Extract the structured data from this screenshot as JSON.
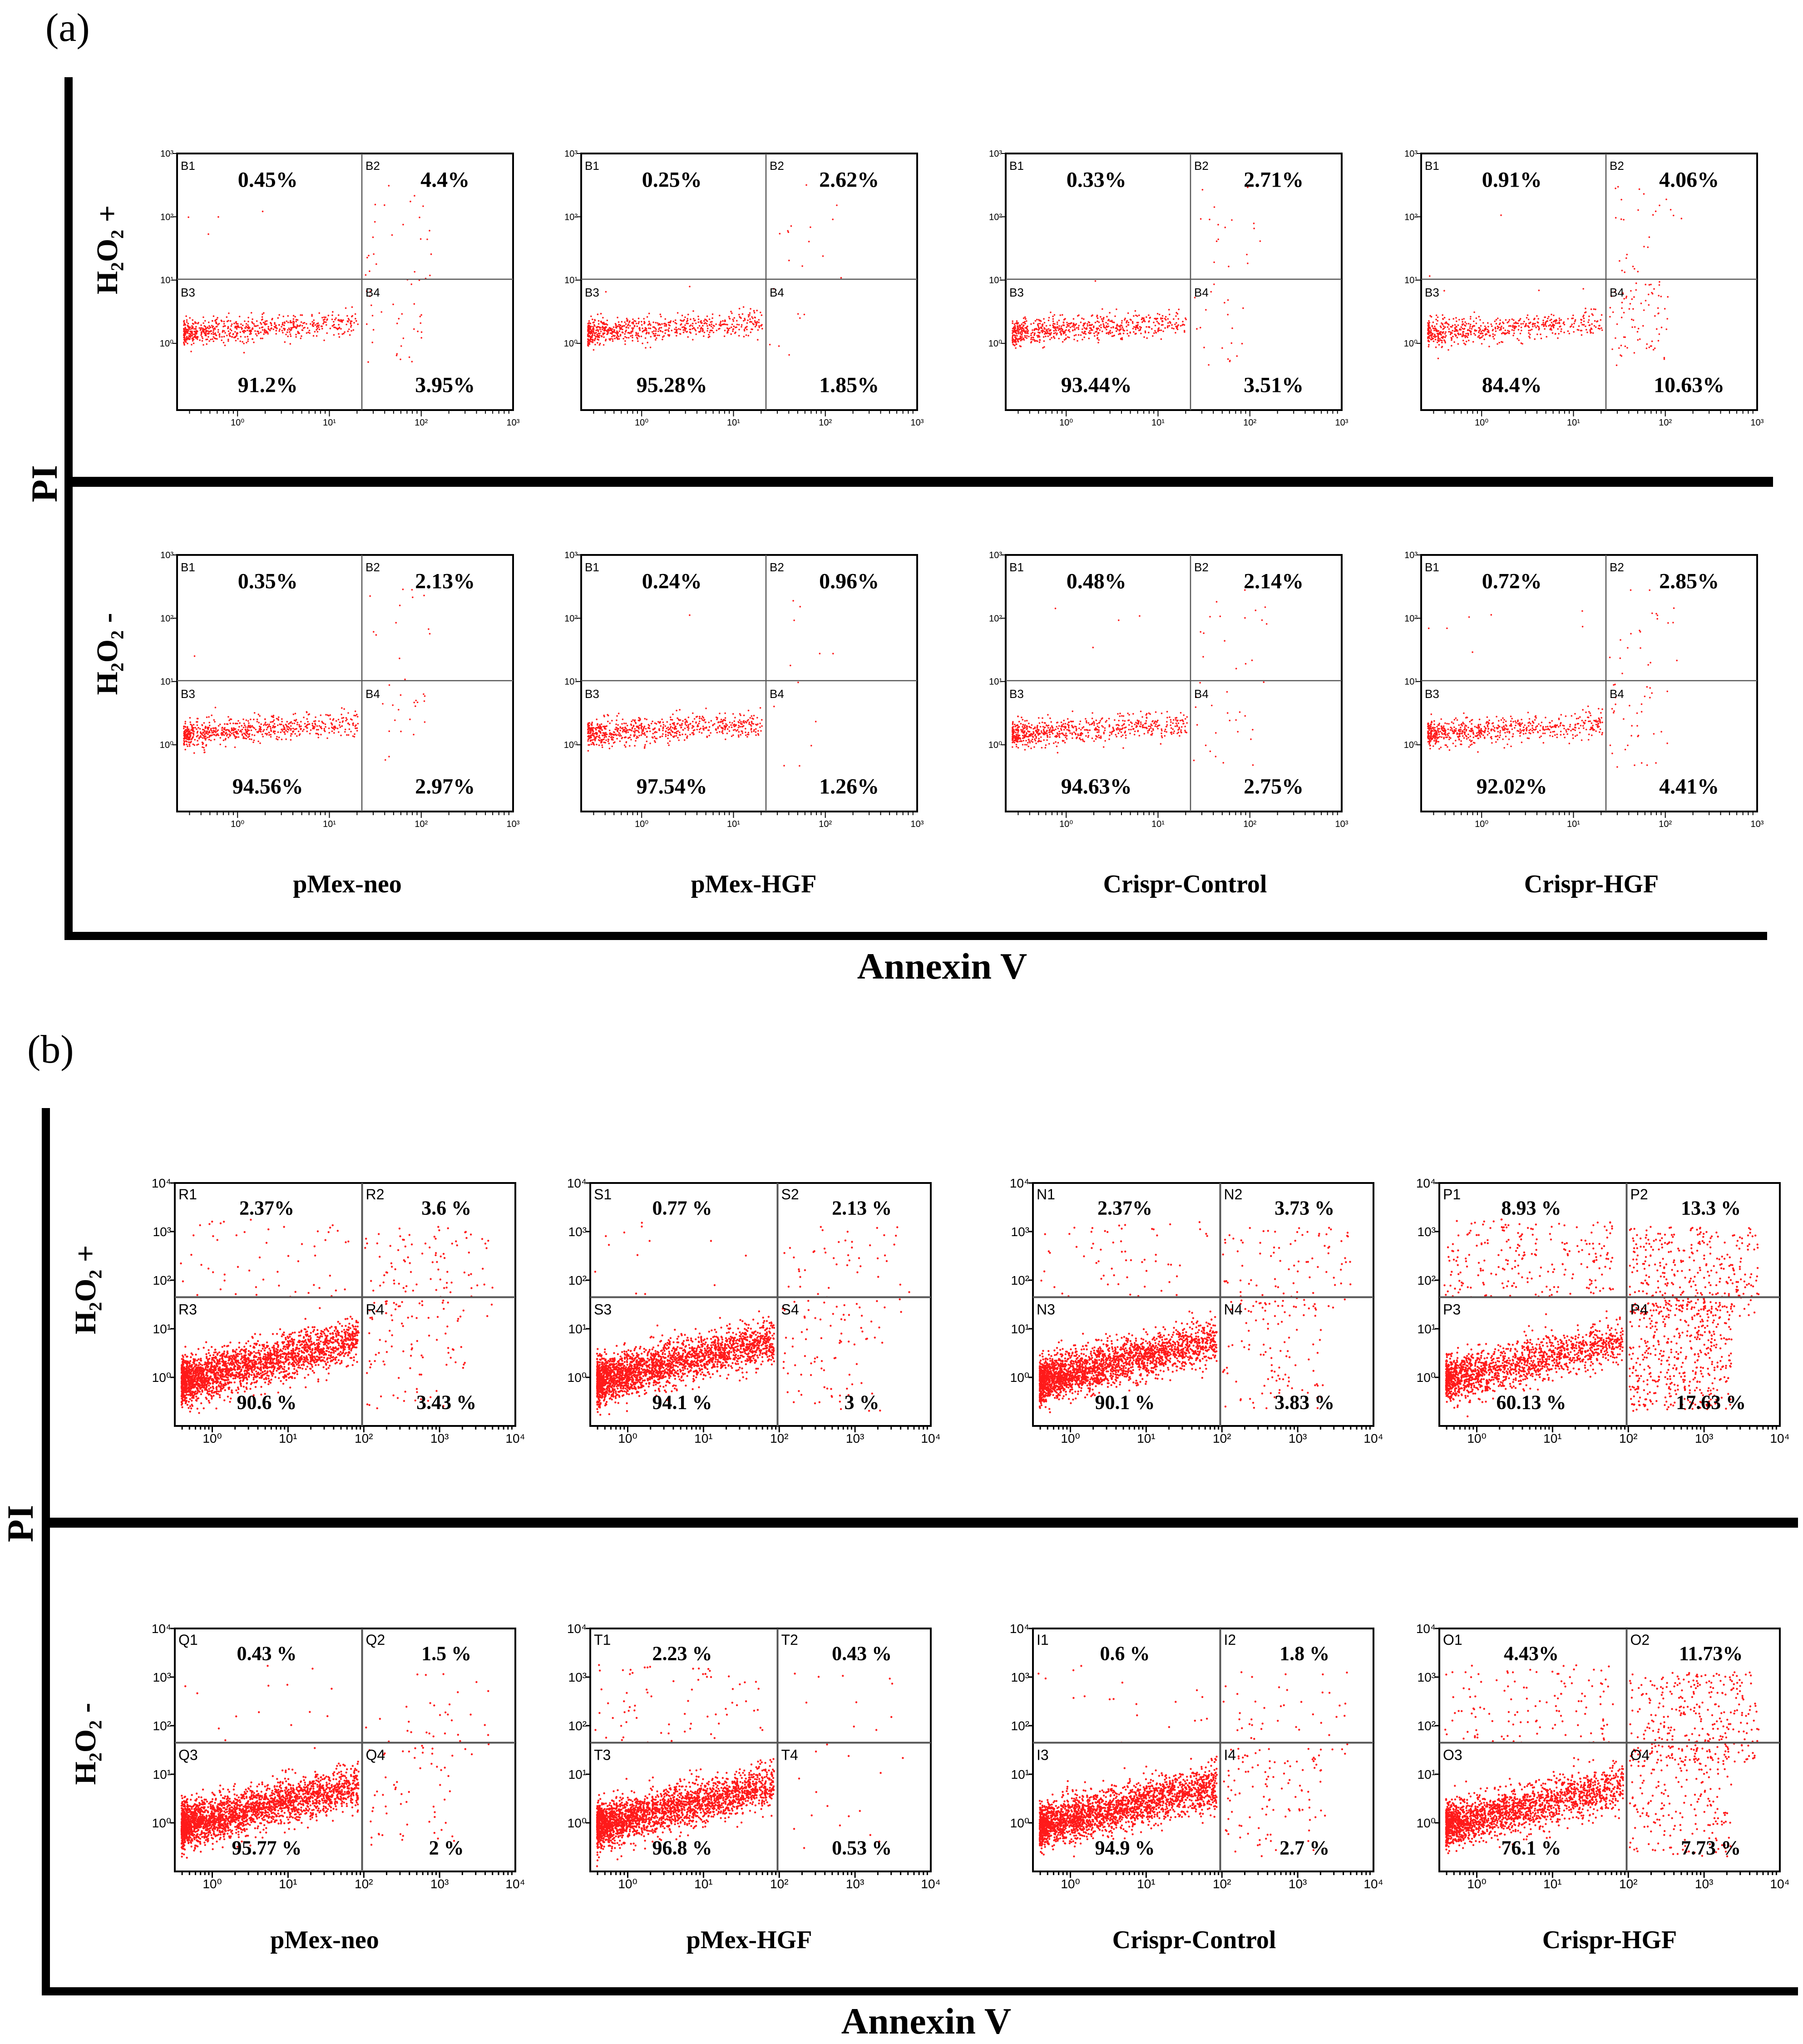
{
  "panels": [
    {
      "label": "(a)",
      "y_axis_label": "PI",
      "x_axis_label": "Annexin V",
      "row_labels": [
        "H₂O₂ +",
        "H₂O₂ -"
      ],
      "column_labels": [
        "pMex-neo",
        "pMex-HGF",
        "Crispr-Control",
        "Crispr-HGF"
      ]
    },
    {
      "label": "(b)",
      "y_axis_label": "PI",
      "x_axis_label": "Annexin V",
      "row_labels": [
        "H₂O₂ +",
        "H₂O₂ -"
      ],
      "column_labels": [
        "pMex-neo",
        "pMex-HGF",
        "Crispr-Control",
        "Crispr-HGF"
      ]
    }
  ],
  "colors": {
    "dots": "#ff1a1a",
    "axes": "#000000",
    "gate_lines": "#555555"
  },
  "chart_data": [
    {
      "type": "scatter",
      "panel": "(a)",
      "row": "H₂O₂ +",
      "column": "pMex-neo",
      "xscale": "log",
      "yscale": "log",
      "x_ticks": [
        "10⁰",
        "10¹",
        "10²",
        "10³"
      ],
      "y_ticks": [
        "10⁰",
        "10¹",
        "10²",
        "10³"
      ],
      "gate_names": [
        "B1",
        "B2",
        "B3",
        "B4"
      ],
      "quadrants": {
        "UL": "0.45%",
        "UR": "4.4%",
        "LL": "91.2%",
        "LR": "3.95%"
      }
    },
    {
      "type": "scatter",
      "panel": "(a)",
      "row": "H₂O₂ +",
      "column": "pMex-HGF",
      "xscale": "log",
      "yscale": "log",
      "x_ticks": [
        "10⁰",
        "10¹",
        "10²",
        "10³"
      ],
      "y_ticks": [
        "10⁰",
        "10¹",
        "10²",
        "10³"
      ],
      "gate_names": [
        "B1",
        "B2",
        "B3",
        "B4"
      ],
      "quadrants": {
        "UL": "0.25%",
        "UR": "2.62%",
        "LL": "95.28%",
        "LR": "1.85%"
      }
    },
    {
      "type": "scatter",
      "panel": "(a)",
      "row": "H₂O₂ +",
      "column": "Crispr-Control",
      "xscale": "log",
      "yscale": "log",
      "x_ticks": [
        "10⁰",
        "10¹",
        "10²",
        "10³"
      ],
      "y_ticks": [
        "10⁰",
        "10¹",
        "10²",
        "10³"
      ],
      "gate_names": [
        "B1",
        "B2",
        "B3",
        "B4"
      ],
      "quadrants": {
        "UL": "0.33%",
        "UR": "2.71%",
        "LL": "93.44%",
        "LR": "3.51%"
      }
    },
    {
      "type": "scatter",
      "panel": "(a)",
      "row": "H₂O₂ +",
      "column": "Crispr-HGF",
      "xscale": "log",
      "yscale": "log",
      "x_ticks": [
        "10⁰",
        "10¹",
        "10²",
        "10³"
      ],
      "y_ticks": [
        "10⁰",
        "10¹",
        "10²",
        "10³"
      ],
      "gate_names": [
        "B1",
        "B2",
        "B3",
        "B4"
      ],
      "quadrants": {
        "UL": "0.91%",
        "UR": "4.06%",
        "LL": "84.4%",
        "LR": "10.63%"
      }
    },
    {
      "type": "scatter",
      "panel": "(a)",
      "row": "H₂O₂ -",
      "column": "pMex-neo",
      "xscale": "log",
      "yscale": "log",
      "x_ticks": [
        "10⁰",
        "10¹",
        "10²",
        "10³"
      ],
      "y_ticks": [
        "10⁰",
        "10¹",
        "10²",
        "10³"
      ],
      "gate_names": [
        "B1",
        "B2",
        "B3",
        "B4"
      ],
      "quadrants": {
        "UL": "0.35%",
        "UR": "2.13%",
        "LL": "94.56%",
        "LR": "2.97%"
      }
    },
    {
      "type": "scatter",
      "panel": "(a)",
      "row": "H₂O₂ -",
      "column": "pMex-HGF",
      "xscale": "log",
      "yscale": "log",
      "x_ticks": [
        "10⁰",
        "10¹",
        "10²",
        "10³"
      ],
      "y_ticks": [
        "10⁰",
        "10¹",
        "10²",
        "10³"
      ],
      "gate_names": [
        "B1",
        "B2",
        "B3",
        "B4"
      ],
      "quadrants": {
        "UL": "0.24%",
        "UR": "0.96%",
        "LL": "97.54%",
        "LR": "1.26%"
      }
    },
    {
      "type": "scatter",
      "panel": "(a)",
      "row": "H₂O₂ -",
      "column": "Crispr-Control",
      "xscale": "log",
      "yscale": "log",
      "x_ticks": [
        "10⁰",
        "10¹",
        "10²",
        "10³"
      ],
      "y_ticks": [
        "10⁰",
        "10¹",
        "10²",
        "10³"
      ],
      "gate_names": [
        "B1",
        "B2",
        "B3",
        "B4"
      ],
      "quadrants": {
        "UL": "0.48%",
        "UR": "2.14%",
        "LL": "94.63%",
        "LR": "2.75%"
      }
    },
    {
      "type": "scatter",
      "panel": "(a)",
      "row": "H₂O₂ -",
      "column": "Crispr-HGF",
      "xscale": "log",
      "yscale": "log",
      "x_ticks": [
        "10⁰",
        "10¹",
        "10²",
        "10³"
      ],
      "y_ticks": [
        "10⁰",
        "10¹",
        "10²",
        "10³"
      ],
      "gate_names": [
        "B1",
        "B2",
        "B3",
        "B4"
      ],
      "quadrants": {
        "UL": "0.72%",
        "UR": "2.85%",
        "LL": "92.02%",
        "LR": "4.41%"
      }
    },
    {
      "type": "scatter",
      "panel": "(b)",
      "row": "H₂O₂ +",
      "column": "pMex-neo",
      "xscale": "log",
      "yscale": "log",
      "x_ticks": [
        "10⁰",
        "10¹",
        "10²",
        "10³",
        "10⁴"
      ],
      "y_ticks": [
        "10⁰",
        "10¹",
        "10²",
        "10³",
        "10⁴"
      ],
      "gate_names": [
        "R1",
        "R2",
        "R3",
        "R4"
      ],
      "quadrants": {
        "UL": "2.37%",
        "UR": "3.6 %",
        "LL": "90.6 %",
        "LR": "3.43 %"
      }
    },
    {
      "type": "scatter",
      "panel": "(b)",
      "row": "H₂O₂ +",
      "column": "pMex-HGF",
      "xscale": "log",
      "yscale": "log",
      "x_ticks": [
        "10⁰",
        "10¹",
        "10²",
        "10³",
        "10⁴"
      ],
      "y_ticks": [
        "10⁰",
        "10¹",
        "10²",
        "10³",
        "10⁴"
      ],
      "gate_names": [
        "S1",
        "S2",
        "S3",
        "S4"
      ],
      "quadrants": {
        "UL": "0.77 %",
        "UR": "2.13 %",
        "LL": "94.1 %",
        "LR": "3 %"
      }
    },
    {
      "type": "scatter",
      "panel": "(b)",
      "row": "H₂O₂ +",
      "column": "Crispr-Control",
      "xscale": "log",
      "yscale": "log",
      "x_ticks": [
        "10⁰",
        "10¹",
        "10²",
        "10³",
        "10⁴"
      ],
      "y_ticks": [
        "10⁰",
        "10¹",
        "10²",
        "10³",
        "10⁴"
      ],
      "gate_names": [
        "N1",
        "N2",
        "N3",
        "N4"
      ],
      "quadrants": {
        "UL": "2.37%",
        "UR": "3.73 %",
        "LL": "90.1 %",
        "LR": "3.83 %"
      }
    },
    {
      "type": "scatter",
      "panel": "(b)",
      "row": "H₂O₂ +",
      "column": "Crispr-HGF",
      "xscale": "log",
      "yscale": "log",
      "x_ticks": [
        "10⁰",
        "10¹",
        "10²",
        "10³",
        "10⁴"
      ],
      "y_ticks": [
        "10⁰",
        "10¹",
        "10²",
        "10³",
        "10⁴"
      ],
      "gate_names": [
        "P1",
        "P2",
        "P3",
        "P4"
      ],
      "quadrants": {
        "UL": "8.93 %",
        "UR": "13.3 %",
        "LL": "60.13 %",
        "LR": "17.63 %"
      }
    },
    {
      "type": "scatter",
      "panel": "(b)",
      "row": "H₂O₂ -",
      "column": "pMex-neo",
      "xscale": "log",
      "yscale": "log",
      "x_ticks": [
        "10⁰",
        "10¹",
        "10²",
        "10³",
        "10⁴"
      ],
      "y_ticks": [
        "10⁰",
        "10¹",
        "10²",
        "10³",
        "10⁴"
      ],
      "gate_names": [
        "Q1",
        "Q2",
        "Q3",
        "Q4"
      ],
      "quadrants": {
        "UL": "0.43 %",
        "UR": "1.5 %",
        "LL": "95.77 %",
        "LR": "2 %"
      }
    },
    {
      "type": "scatter",
      "panel": "(b)",
      "row": "H₂O₂ -",
      "column": "pMex-HGF",
      "xscale": "log",
      "yscale": "log",
      "x_ticks": [
        "10⁰",
        "10¹",
        "10²",
        "10³",
        "10⁴"
      ],
      "y_ticks": [
        "10⁰",
        "10¹",
        "10²",
        "10³",
        "10⁴"
      ],
      "gate_names": [
        "T1",
        "T2",
        "T3",
        "T4"
      ],
      "quadrants": {
        "UL": "2.23 %",
        "UR": "0.43 %",
        "LL": "96.8 %",
        "LR": "0.53 %"
      }
    },
    {
      "type": "scatter",
      "panel": "(b)",
      "row": "H₂O₂ -",
      "column": "Crispr-Control",
      "xscale": "log",
      "yscale": "log",
      "x_ticks": [
        "10⁰",
        "10¹",
        "10²",
        "10³",
        "10⁴"
      ],
      "y_ticks": [
        "10⁰",
        "10¹",
        "10²",
        "10³",
        "10⁴"
      ],
      "gate_names": [
        "I1",
        "I2",
        "I3",
        "I4"
      ],
      "quadrants": {
        "UL": "0.6 %",
        "UR": "1.8 %",
        "LL": "94.9 %",
        "LR": "2.7 %"
      }
    },
    {
      "type": "scatter",
      "panel": "(b)",
      "row": "H₂O₂ -",
      "column": "Crispr-HGF",
      "xscale": "log",
      "yscale": "log",
      "x_ticks": [
        "10⁰",
        "10¹",
        "10²",
        "10³",
        "10⁴"
      ],
      "y_ticks": [
        "10⁰",
        "10¹",
        "10²",
        "10³",
        "10⁴"
      ],
      "gate_names": [
        "O1",
        "O2",
        "O3",
        "O4"
      ],
      "quadrants": {
        "UL": "4.43%",
        "UR": "11.73%",
        "LL": "76.1 %",
        "LR": "7.73 %"
      }
    }
  ]
}
